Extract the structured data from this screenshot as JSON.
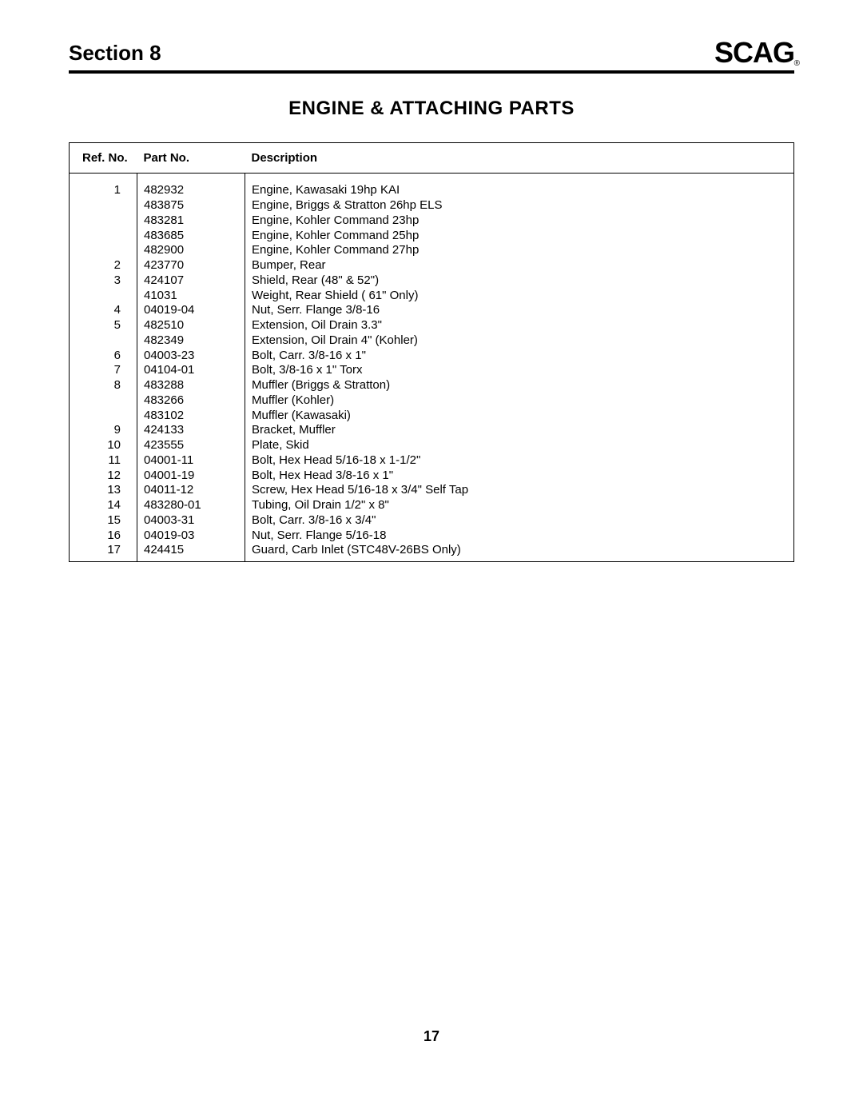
{
  "header": {
    "section_label": "Section 8",
    "logo_text": "SCAG",
    "logo_reg": "®"
  },
  "title": "ENGINE & ATTACHING PARTS",
  "table": {
    "columns": {
      "ref": "Ref. No.",
      "part": "Part No.",
      "desc": "Description"
    },
    "rows": [
      {
        "ref": "1",
        "part": "482932",
        "desc": "Engine, Kawasaki 19hp KAI"
      },
      {
        "ref": "",
        "part": "483875",
        "desc": "Engine, Briggs & Stratton 26hp ELS"
      },
      {
        "ref": "",
        "part": "483281",
        "desc": "Engine, Kohler Command 23hp"
      },
      {
        "ref": "",
        "part": "483685",
        "desc": "Engine, Kohler Command 25hp"
      },
      {
        "ref": "",
        "part": "482900",
        "desc": "Engine, Kohler Command 27hp"
      },
      {
        "ref": "2",
        "part": "423770",
        "desc": "Bumper, Rear"
      },
      {
        "ref": "3",
        "part": "424107",
        "desc": "Shield, Rear (48\" & 52\")"
      },
      {
        "ref": "",
        "part": "41031",
        "desc": "Weight, Rear Shield ( 61\" Only)"
      },
      {
        "ref": "4",
        "part": "04019-04",
        "desc": "Nut, Serr. Flange 3/8-16"
      },
      {
        "ref": "5",
        "part": "482510",
        "desc": "Extension, Oil Drain 3.3\""
      },
      {
        "ref": "",
        "part": "482349",
        "desc": "Extension, Oil Drain 4\" (Kohler)"
      },
      {
        "ref": "6",
        "part": "04003-23",
        "desc": "Bolt, Carr. 3/8-16 x 1\""
      },
      {
        "ref": "7",
        "part": "04104-01",
        "desc": "Bolt, 3/8-16 x 1\" Torx"
      },
      {
        "ref": "8",
        "part": "483288",
        "desc": "Muffler (Briggs & Stratton)"
      },
      {
        "ref": "",
        "part": "483266",
        "desc": "Muffler (Kohler)"
      },
      {
        "ref": "",
        "part": "483102",
        "desc": "Muffler (Kawasaki)"
      },
      {
        "ref": "9",
        "part": "424133",
        "desc": "Bracket, Muffler"
      },
      {
        "ref": "10",
        "part": "423555",
        "desc": "Plate, Skid"
      },
      {
        "ref": "11",
        "part": "04001-11",
        "desc": "Bolt, Hex Head 5/16-18 x 1-1/2\""
      },
      {
        "ref": "12",
        "part": "04001-19",
        "desc": "Bolt, Hex Head 3/8-16 x 1\""
      },
      {
        "ref": "13",
        "part": "04011-12",
        "desc": "Screw, Hex Head 5/16-18 x 3/4\" Self Tap"
      },
      {
        "ref": "14",
        "part": "483280-01",
        "desc": "Tubing, Oil Drain 1/2\" x 8\""
      },
      {
        "ref": "15",
        "part": "04003-31",
        "desc": "Bolt, Carr. 3/8-16 x 3/4\""
      },
      {
        "ref": "16",
        "part": "04019-03",
        "desc": "Nut, Serr. Flange 5/16-18"
      },
      {
        "ref": "17",
        "part": "424415",
        "desc": "Guard, Carb Inlet (STC48V-26BS Only)"
      }
    ]
  },
  "page_number": "17"
}
